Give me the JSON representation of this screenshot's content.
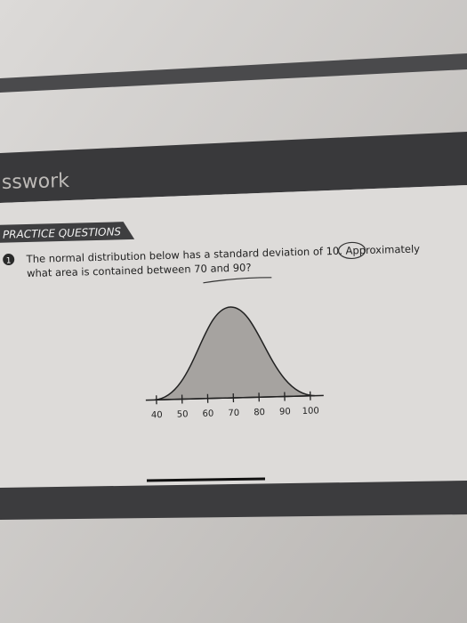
{
  "header": {
    "title": "sswork"
  },
  "section": {
    "title": "PRACTICE QUESTIONS"
  },
  "question": {
    "number": "1",
    "lines": [
      "The normal distribution below has a standard deviation of 10. Approximately",
      "what area is contained between 70 and 90?"
    ]
  },
  "figure": {
    "ticks": [
      40,
      50,
      60,
      70,
      80,
      90,
      100
    ]
  }
}
